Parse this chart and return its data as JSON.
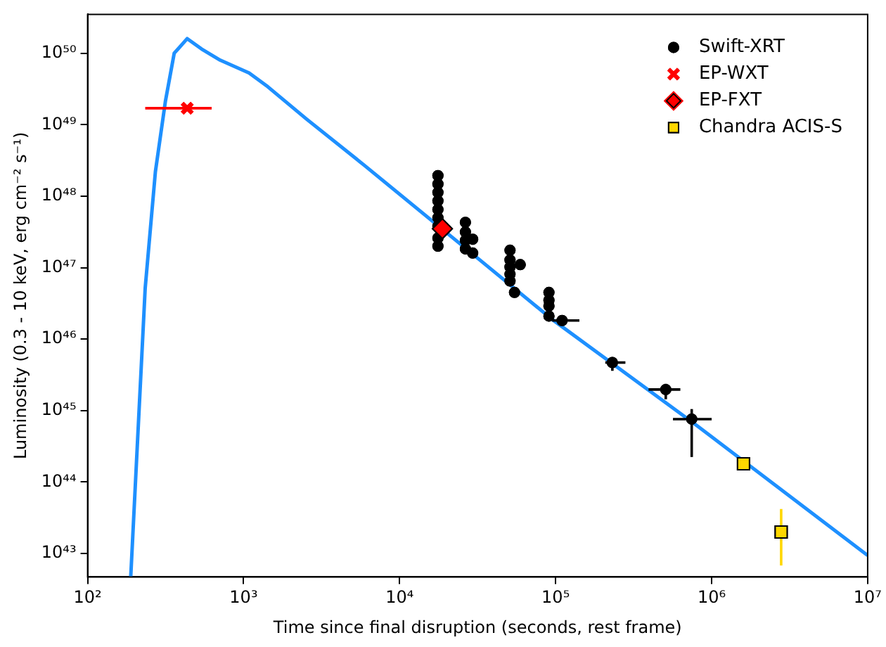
{
  "chart_data": {
    "type": "scatter",
    "xlabel": "Time since final disruption (seconds, rest frame)",
    "ylabel": "Luminosity (0.3 - 10 keV, erg cm⁻² s⁻¹)",
    "log": "xy",
    "grid": false,
    "legend": "top right",
    "xlim": [
      100,
      10000000
    ],
    "xticks": [
      {
        "value": 100,
        "label": "10²"
      },
      {
        "value": 1000,
        "label": "10³"
      },
      {
        "value": 10000,
        "label": "10⁴"
      },
      {
        "value": 100000,
        "label": "10⁵"
      },
      {
        "value": 1000000,
        "label": "10⁶"
      },
      {
        "value": 10000000,
        "label": "10⁷"
      }
    ],
    "ylim": [
      4.7e+42,
      3.5e+50
    ],
    "yticks": [
      {
        "value": 1e+43,
        "label": "10⁴³"
      },
      {
        "value": 1e+44,
        "label": "10⁴⁴"
      },
      {
        "value": 1e+45,
        "label": "10⁴⁵"
      },
      {
        "value": 1e+46,
        "label": "10⁴⁶"
      },
      {
        "value": 1e+47,
        "label": "10⁴⁷"
      },
      {
        "value": 1e+48,
        "label": "10⁴⁸"
      },
      {
        "value": 1e+49,
        "label": "10⁴⁹"
      },
      {
        "value": 1e+50,
        "label": "10⁵⁰"
      }
    ],
    "series": [
      {
        "type": "line",
        "color": "#1e90ff",
        "marker": "none",
        "x": [
          189,
          234,
          272,
          315,
          359,
          435,
          537,
          708,
          1084,
          1429,
          2541,
          5943,
          32660,
          94600,
          794000,
          10000000
        ],
        "values": [
          4.7e+42,
          5.2e+46,
          2.2e+48,
          2.1e+49,
          1e+50,
          1.6e+50,
          1.15e+50,
          8e+49,
          5.3e+49,
          3.4e+49,
          1.19e+49,
          2.7e+48,
          1.28e+47,
          1.9e+46,
          6.3e+44,
          9.4e+42
        ]
      },
      {
        "name": "Swift-XRT",
        "type": "scatter",
        "color": "#000000",
        "marker": "circle",
        "x": [
          17600,
          17600,
          17600,
          17600,
          17600,
          17600,
          17600,
          17600,
          17600,
          25300,
          26400,
          26400,
          26400,
          26400,
          29400,
          29400,
          51000,
          51000,
          51000,
          51000,
          51000,
          54500,
          59300,
          90600,
          90600,
          90600,
          90600,
          110000,
          231000,
          508000,
          745000
        ],
        "values": [
          1.94e+48,
          1.48e+48,
          1.13e+48,
          8.6e+47,
          6.5e+47,
          5e+47,
          3.8e+47,
          2.6e+47,
          2e+47,
          null,
          4.3e+47,
          3.16e+47,
          2.4e+47,
          1.83e+47,
          2.5e+47,
          1.6e+47,
          1.75e+47,
          1.28e+47,
          1.02e+47,
          8.1e+46,
          6.5e+46,
          4.5e+46,
          1.1e+47,
          4.5e+46,
          3.5e+46,
          2.9e+46,
          2.1e+46,
          1.82e+46,
          4.7e+45,
          1.97e+45,
          7.6e+44
        ],
        "errors": [
          null,
          null,
          null,
          null,
          null,
          null,
          null,
          null,
          null,
          null,
          null,
          null,
          null,
          null,
          null,
          null,
          null,
          null,
          null,
          null,
          null,
          null,
          null,
          null,
          null,
          null,
          null,
          null,
          [
            3.6e+45,
            5.6e+45
          ],
          [
            1.44e+45,
            2.37e+45
          ],
          [
            2.24e+44,
            1.05e+45
          ]
        ],
        "xerrors": [
          null,
          null,
          null,
          null,
          null,
          null,
          null,
          null,
          null,
          null,
          null,
          null,
          null,
          null,
          null,
          null,
          null,
          null,
          null,
          null,
          null,
          null,
          null,
          null,
          null,
          null,
          null,
          [
            95000,
            142000
          ],
          [
            208000,
            280000
          ],
          [
            394000,
            630000
          ],
          [
            565000,
            1000000
          ]
        ]
      },
      {
        "name": "EP-WXT",
        "type": "scatter",
        "color": "#ff0000",
        "marker": "cross",
        "x": [
          435
        ],
        "values": [
          1.7e+49
        ],
        "xerrors": [
          [
            234,
            624
          ]
        ]
      },
      {
        "name": "EP-FXT",
        "type": "scatter",
        "color": "#ff0000",
        "marker": "diamond",
        "x": [
          18800
        ],
        "values": [
          3.5e+47
        ]
      },
      {
        "name": "Chandra ACIS-S",
        "type": "scatter",
        "color": "#ffd700",
        "marker": "square",
        "x": [
          1600000,
          2790000
        ],
        "values": [
          1.8e+44,
          2e+43
        ],
        "errors": [
          null,
          [
            6.8e+42,
            4.2e+43
          ]
        ]
      }
    ]
  }
}
